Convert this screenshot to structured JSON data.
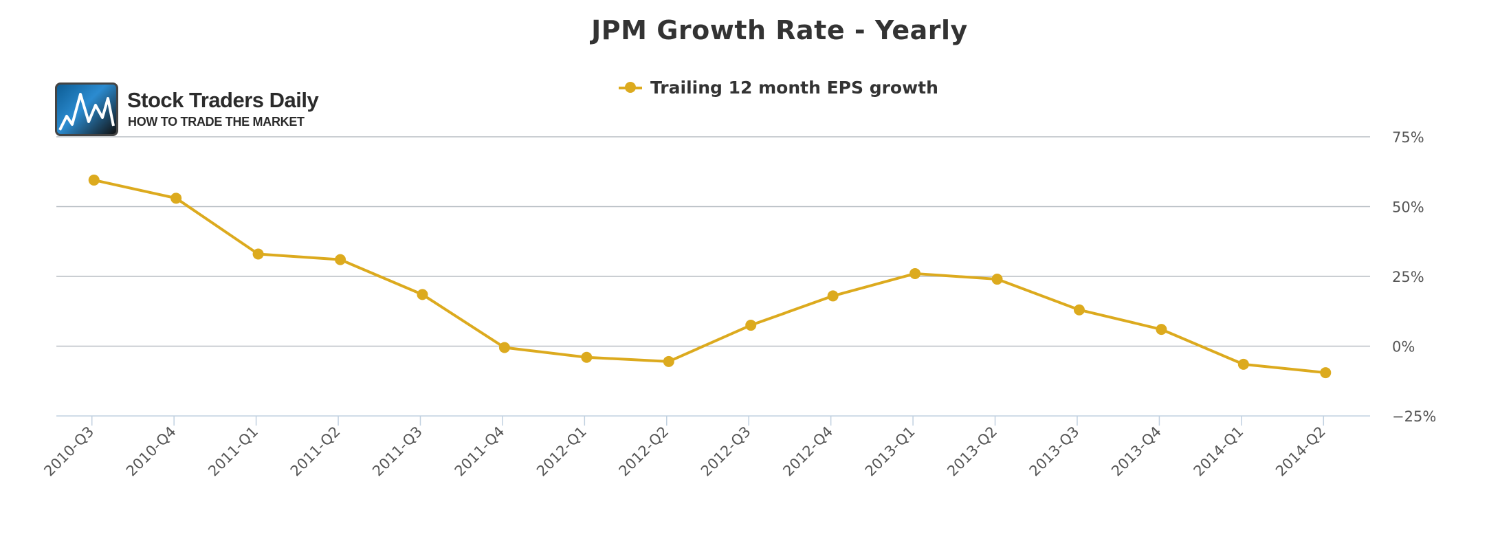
{
  "chart_data": {
    "type": "line",
    "title": "JPM Growth Rate - Yearly",
    "xlabel": "",
    "ylabel": "",
    "categories": [
      "2010-Q3",
      "2010-Q4",
      "2011-Q1",
      "2011-Q2",
      "2011-Q3",
      "2011-Q4",
      "2012-Q1",
      "2012-Q2",
      "2012-Q3",
      "2012-Q4",
      "2013-Q1",
      "2013-Q2",
      "2013-Q3",
      "2013-Q4",
      "2014-Q1",
      "2014-Q2"
    ],
    "series": [
      {
        "name": "Trailing 12 month EPS growth",
        "color": "#dcaa1e",
        "values": [
          59.5,
          53,
          33,
          31,
          18.5,
          -0.5,
          -4,
          -5.5,
          7.5,
          18,
          26,
          24,
          13,
          6,
          -6.5,
          -9.5
        ]
      }
    ],
    "ylim": [
      -25,
      75
    ],
    "yticks": [
      75,
      50,
      25,
      0,
      -25
    ],
    "ytick_labels": [
      "75%",
      "50%",
      "25%",
      "0%",
      "−25%"
    ],
    "y_axis_side": "right",
    "grid": true,
    "legend": "top-center"
  },
  "logo": {
    "name": "Stock Traders Daily",
    "tagline": "HOW TO TRADE THE MARKET"
  },
  "colors": {
    "series": "#dcaa1e",
    "grid": "#b8bec4",
    "axis": "#c0d0e0",
    "text": "#333333",
    "tick_text": "#555555"
  }
}
